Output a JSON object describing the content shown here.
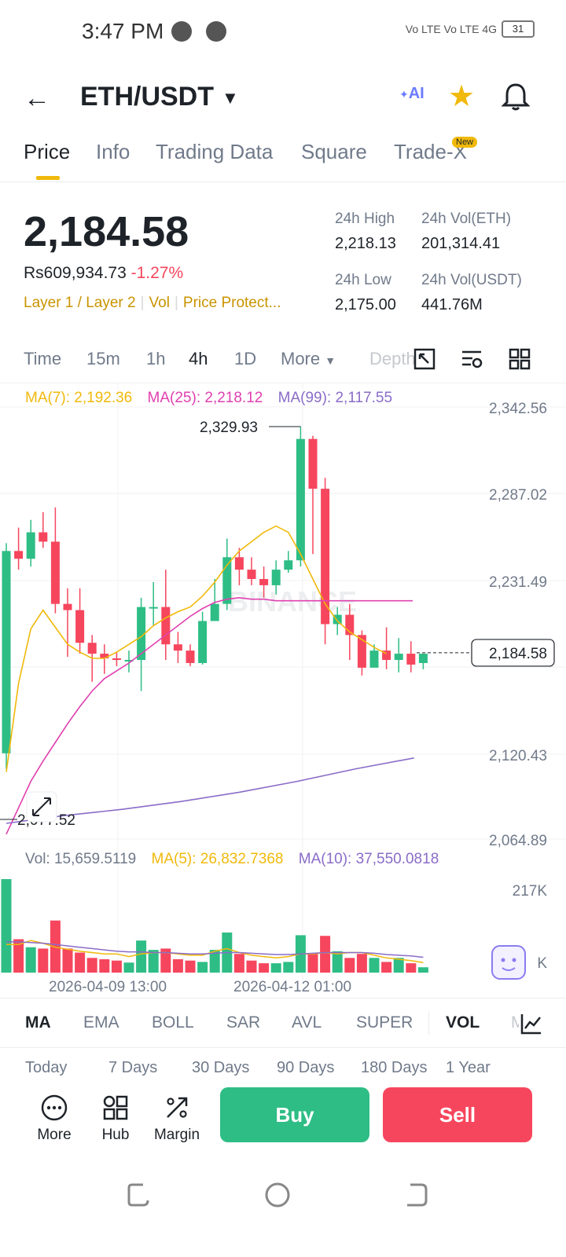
{
  "status": {
    "time": "3:47 PM",
    "network": "Vo LTE  Vo LTE  4G",
    "battery": "31"
  },
  "header": {
    "pair": "ETH/USDT",
    "ai_label": "AI"
  },
  "tabs": [
    {
      "label": "Price",
      "active": true
    },
    {
      "label": "Info"
    },
    {
      "label": "Trading Data"
    },
    {
      "label": "Square"
    },
    {
      "label": "Trade-X",
      "badge": "New"
    }
  ],
  "ticker": {
    "last_price": "2,184.58",
    "local_price": "Rs609,934.73",
    "change": "-1.27%",
    "tags": [
      "Layer 1 / Layer 2",
      "Vol",
      "Price Protect..."
    ],
    "high_label": "24h High",
    "high_value": "2,218.13",
    "vol_eth_label": "24h Vol(ETH)",
    "vol_eth_value": "201,314.41",
    "low_label": "24h Low",
    "low_value": "2,175.00",
    "vol_usdt_label": "24h Vol(USDT)",
    "vol_usdt_value": "441.76M"
  },
  "intervals": {
    "items": [
      "Time",
      "15m",
      "1h",
      "4h",
      "1D",
      "More",
      "Depth"
    ],
    "active": "4h"
  },
  "ma": {
    "ma7": "MA(7): 2,192.36",
    "ma25": "MA(25): 2,218.12",
    "ma99": "MA(99): 2,117.55"
  },
  "volume": {
    "vol": "Vol: 15,659.5119",
    "ma5": "MA(5): 26,832.7368",
    "ma10": "MA(10): 37,550.0818",
    "axis_top": "217K",
    "axis_unit": "K"
  },
  "colors": {
    "up": "#2ebd85",
    "down": "#f6465d",
    "ma7": "#f0b90b",
    "ma25": "#e040b0",
    "ma99": "#8a6cc8",
    "accent": "#f0b90b"
  },
  "chart_data": {
    "type": "candlestick",
    "interval": "4h",
    "y_axis_labels": [
      "2,342.56",
      "2,287.02",
      "2,231.49",
      "2,120.43",
      "2,064.89"
    ],
    "current_price_label": "2,184.58",
    "annotations": {
      "high": "2,329.93",
      "low": "2,077.52"
    },
    "x_tick_labels": [
      "2026-04-09 13:00",
      "2026-04-12 01:00"
    ],
    "watermark": "BINANCE",
    "candles": [
      [
        2120,
        2250,
        2255,
        2110
      ],
      [
        2250,
        2245,
        2265,
        2238
      ],
      [
        2245,
        2262,
        2270,
        2240
      ],
      [
        2262,
        2256,
        2275,
        2252
      ],
      [
        2256,
        2216,
        2278,
        2210
      ],
      [
        2216,
        2212,
        2226,
        2182
      ],
      [
        2212,
        2191,
        2226,
        2184
      ],
      [
        2191,
        2184,
        2196,
        2166
      ],
      [
        2184,
        2181,
        2190,
        2171
      ],
      [
        2181,
        2180,
        2185,
        2176
      ],
      [
        2180,
        2180,
        2186,
        2172
      ],
      [
        2180,
        2214,
        2220,
        2160
      ],
      [
        2214,
        2214,
        2230,
        2202
      ],
      [
        2214,
        2190,
        2238,
        2180
      ],
      [
        2190,
        2186,
        2198,
        2178
      ],
      [
        2186,
        2178,
        2190,
        2176
      ],
      [
        2178,
        2205,
        2211,
        2177
      ],
      [
        2205,
        2216,
        2232,
        2206
      ],
      [
        2216,
        2246,
        2258,
        2212
      ],
      [
        2246,
        2238,
        2252,
        2228
      ],
      [
        2238,
        2232,
        2246,
        2228
      ],
      [
        2232,
        2228,
        2240,
        2220
      ],
      [
        2228,
        2238,
        2244,
        2222
      ],
      [
        2238,
        2244,
        2250,
        2236
      ],
      [
        2244,
        2322,
        2330,
        2240
      ],
      [
        2322,
        2290,
        2324,
        2248
      ],
      [
        2290,
        2203,
        2297,
        2190
      ],
      [
        2203,
        2209,
        2214,
        2196
      ],
      [
        2209,
        2196,
        2216,
        2180
      ],
      [
        2196,
        2175,
        2199,
        2170
      ],
      [
        2175,
        2186,
        2190,
        2176
      ],
      [
        2186,
        2180,
        2201,
        2174
      ],
      [
        2180,
        2184,
        2194,
        2172
      ],
      [
        2184,
        2177,
        2192,
        2172
      ],
      [
        2178,
        2184,
        2184,
        2174
      ]
    ],
    "volumes": [
      140,
      50,
      38,
      36,
      78,
      36,
      30,
      22,
      20,
      18,
      15,
      48,
      34,
      36,
      20,
      18,
      16,
      34,
      60,
      28,
      18,
      14,
      14,
      16,
      56,
      28,
      55,
      32,
      22,
      28,
      22,
      16,
      22,
      14,
      8
    ],
    "ma7": [
      2108,
      2165,
      2200,
      2212,
      2201,
      2190,
      2185,
      2181,
      2181,
      2185,
      2190,
      2195,
      2202,
      2207,
      2211,
      2214,
      2221,
      2230,
      2241,
      2250,
      2256,
      2262,
      2266,
      2262,
      2248,
      2232,
      2216,
      2205,
      2198,
      2193,
      2188,
      2184
    ],
    "ma25": [
      2068,
      2085,
      2102,
      2115,
      2127,
      2139,
      2150,
      2160,
      2168,
      2173,
      2178,
      2184,
      2190,
      2196,
      2202,
      2208,
      2213,
      2217,
      2219,
      2220,
      2219,
      2219,
      2218,
      2218,
      2218
    ],
    "ma99": [
      2075,
      2080,
      2084,
      2089,
      2095,
      2102,
      2110,
      2117
    ],
    "ma5_vol": [
      42,
      42,
      48,
      44,
      38,
      35,
      32,
      30,
      28,
      28,
      24,
      28,
      30,
      30,
      28,
      26,
      26,
      32,
      36,
      30,
      26,
      24,
      22,
      24,
      28,
      28,
      30,
      28,
      30,
      30,
      26,
      22,
      20,
      18,
      15
    ],
    "ma10_vol": [
      46,
      46,
      45,
      44,
      42,
      40,
      38,
      36,
      34,
      32,
      31,
      31,
      30,
      30,
      29,
      28,
      28,
      29,
      30,
      30,
      29,
      28,
      27,
      27,
      28,
      29,
      30,
      30,
      30,
      30,
      29,
      27,
      26,
      25,
      23
    ]
  },
  "indicators": {
    "items": [
      "MA",
      "EMA",
      "BOLL",
      "SAR",
      "AVL",
      "SUPER",
      "VOL",
      "M"
    ],
    "active": [
      "MA",
      "VOL"
    ]
  },
  "periods": [
    "Today",
    "7 Days",
    "30 Days",
    "90 Days",
    "180 Days",
    "1 Year"
  ],
  "actions": {
    "more": "More",
    "hub": "Hub",
    "margin": "Margin",
    "buy": "Buy",
    "sell": "Sell"
  }
}
